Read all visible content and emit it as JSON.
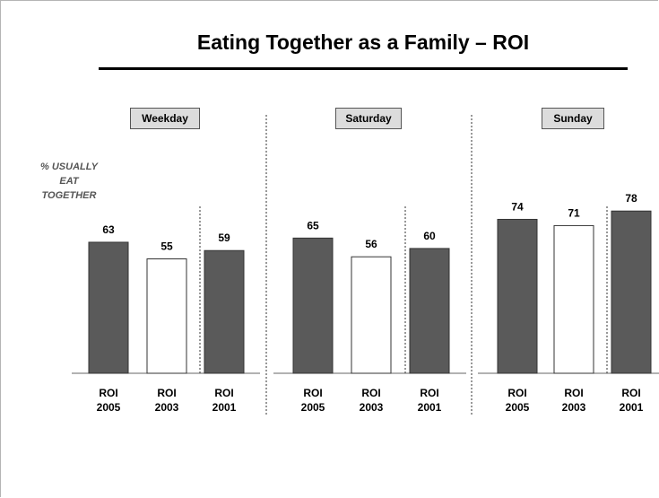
{
  "chart_data": {
    "type": "bar",
    "title": "Eating Together as a Family – ROI",
    "ylabel_lines": [
      "% USUALLY",
      "EAT",
      "TOGETHER"
    ],
    "groups": [
      {
        "name": "Weekday",
        "categories": [
          [
            "ROI",
            "2005"
          ],
          [
            "ROI",
            "2003"
          ],
          [
            "ROI",
            "2001"
          ]
        ],
        "values": [
          63,
          55,
          59
        ]
      },
      {
        "name": "Saturday",
        "categories": [
          [
            "ROI",
            "2005"
          ],
          [
            "ROI",
            "2003"
          ],
          [
            "ROI",
            "2001"
          ]
        ],
        "values": [
          65,
          56,
          60
        ]
      },
      {
        "name": "Sunday",
        "categories": [
          [
            "ROI",
            "2005"
          ],
          [
            "ROI",
            "2003"
          ],
          [
            "ROI",
            "2001"
          ]
        ],
        "values": [
          74,
          71,
          78
        ]
      }
    ],
    "bar_styles": [
      "filled",
      "outline",
      "filled"
    ],
    "colors": {
      "filled": "#5a5a5a",
      "outline": "#ffffff",
      "stroke": "#333333"
    },
    "ylim": [
      0,
      80
    ]
  }
}
